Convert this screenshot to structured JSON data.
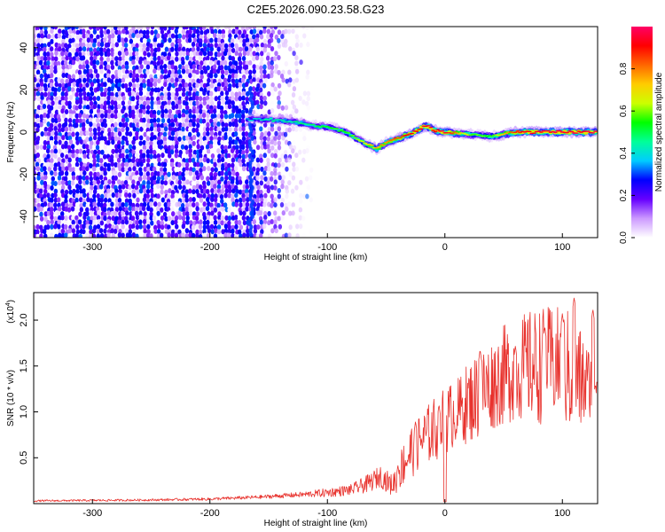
{
  "title": "C2E5.2026.090.23.58.G23",
  "colors": {
    "snr_line": "#e8322d",
    "spectrogram_noise": "#6a00e0",
    "ridge_core": "#ff2a2a"
  },
  "chart_data": [
    {
      "type": "heatmap",
      "name": "spectrogram",
      "xlabel": "Height of straight line (km)",
      "ylabel": "Frequency (Hz)",
      "xlim": [
        -350,
        130
      ],
      "ylim": [
        -50,
        50
      ],
      "xticks": [
        -300,
        -200,
        -100,
        0,
        100
      ],
      "yticks": [
        -40,
        -20,
        0,
        20,
        40
      ],
      "colorbar": {
        "label": "Normalized spectral amplitude",
        "range": [
          0,
          1
        ],
        "ticks": [
          "0.0",
          "0.2",
          "0.4",
          "0.6",
          "0.8"
        ],
        "tick_values": [
          0,
          0.2,
          0.4,
          0.6,
          0.8
        ],
        "colormap": [
          "#ffffff",
          "#cc99ff",
          "#6600ff",
          "#0000ff",
          "#00ccff",
          "#00ff99",
          "#00ff00",
          "#ccff00",
          "#ffcc00",
          "#ff6600",
          "#ff0000",
          "#ff0066"
        ]
      },
      "noise_region_x": [
        -350,
        -165
      ],
      "ridge": {
        "x": [
          -168,
          -150,
          -130,
          -110,
          -95,
          -85,
          -75,
          -65,
          -58,
          -50,
          -40,
          -30,
          -20,
          -15,
          -10,
          0,
          20,
          40,
          60,
          80,
          100,
          130
        ],
        "freq": [
          6,
          6,
          5,
          3,
          2,
          0,
          -3,
          -6,
          -8,
          -5,
          -3,
          -1,
          2,
          3,
          1,
          0,
          -1,
          -2,
          0,
          0,
          0,
          0
        ],
        "amplitude": [
          0.35,
          0.45,
          0.45,
          0.5,
          0.55,
          0.55,
          0.6,
          0.7,
          0.75,
          0.8,
          0.85,
          0.9,
          0.92,
          0.95,
          0.95,
          0.95,
          0.6,
          0.55,
          0.9,
          0.95,
          0.95,
          0.95
        ]
      },
      "grid": false,
      "legend": "none"
    },
    {
      "type": "line",
      "name": "snr",
      "xlabel": "Height of straight line (km)",
      "ylabel": "SNR (10 * v/v)",
      "scale_label": "(x10",
      "scale_exponent": "4",
      "xlim": [
        -350,
        130
      ],
      "ylim": [
        0,
        2.3
      ],
      "xticks": [
        -300,
        -200,
        -100,
        0,
        100
      ],
      "yticks": [
        "0.5",
        "1.0",
        "1.5",
        "2.0"
      ],
      "ytick_values": [
        0.5,
        1.0,
        1.5,
        2.0
      ],
      "envelope": {
        "x": [
          -350,
          -250,
          -200,
          -160,
          -120,
          -100,
          -80,
          -65,
          -55,
          -45,
          -40,
          -35,
          -30,
          -20,
          -10,
          0,
          10,
          20,
          30,
          40,
          50,
          60,
          70,
          80,
          90,
          100,
          110,
          120,
          130
        ],
        "mean": [
          0.03,
          0.04,
          0.05,
          0.07,
          0.1,
          0.12,
          0.15,
          0.22,
          0.3,
          0.2,
          0.3,
          0.45,
          0.55,
          0.7,
          0.8,
          0.9,
          1.0,
          1.1,
          1.2,
          1.3,
          1.4,
          1.45,
          1.5,
          1.5,
          1.55,
          1.5,
          1.4,
          1.3,
          1.35
        ],
        "spread": [
          0.01,
          0.012,
          0.015,
          0.02,
          0.03,
          0.05,
          0.06,
          0.1,
          0.12,
          0.12,
          0.18,
          0.25,
          0.3,
          0.3,
          0.35,
          0.4,
          0.35,
          0.45,
          0.5,
          0.5,
          0.55,
          0.55,
          0.6,
          0.65,
          0.6,
          0.65,
          0.7,
          0.5,
          0.15
        ]
      },
      "peaks": [
        {
          "x": -40,
          "y": 0.42
        },
        {
          "x": -25,
          "y": 0.9
        },
        {
          "x": -5,
          "y": 1.08
        },
        {
          "x": 30,
          "y": 1.68
        },
        {
          "x": 60,
          "y": 1.72
        },
        {
          "x": 85,
          "y": 1.93
        },
        {
          "x": 100,
          "y": 2.07
        },
        {
          "x": 110,
          "y": 2.25
        },
        {
          "x": 126,
          "y": 2.12
        }
      ],
      "grid": false,
      "legend": "none"
    }
  ]
}
